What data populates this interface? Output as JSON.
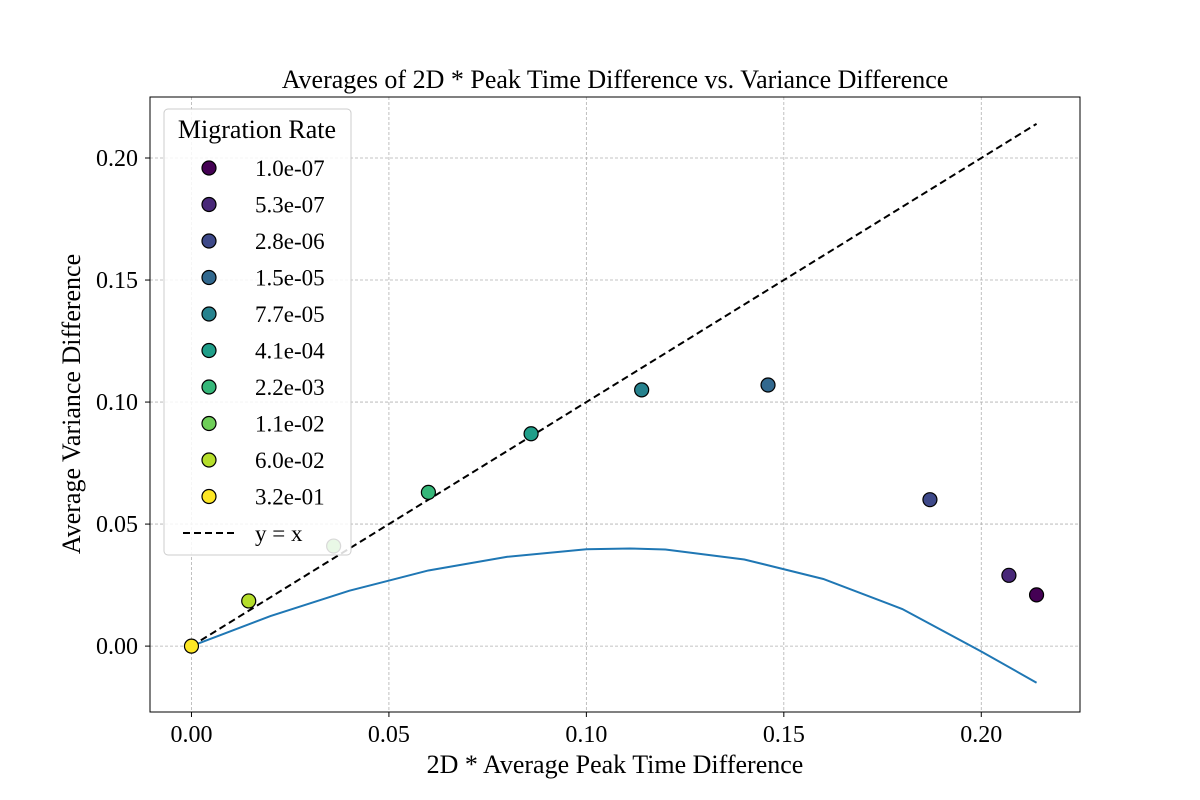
{
  "chart_data": {
    "type": "scatter",
    "title": "Averages of 2D * Peak Time Difference vs. Variance Difference",
    "xlabel": "2D * Average Peak Time Difference",
    "ylabel": "Average Variance Difference",
    "xlim": [
      -0.0105,
      0.225
    ],
    "ylim": [
      -0.027,
      0.225
    ],
    "xticks": [
      0.0,
      0.05,
      0.1,
      0.15,
      0.2
    ],
    "xtick_labels": [
      "0.00",
      "0.05",
      "0.10",
      "0.15",
      "0.20"
    ],
    "yticks": [
      0.0,
      0.05,
      0.1,
      0.15,
      0.2
    ],
    "ytick_labels": [
      "0.00",
      "0.05",
      "0.10",
      "0.15",
      "0.20"
    ],
    "grid": true,
    "legend": {
      "title": "Migration Rate",
      "placement": "top-left",
      "line_label": "y = x"
    },
    "points": [
      {
        "label": "1.0e-07",
        "x": 0.214,
        "y": 0.021,
        "color": "#440154"
      },
      {
        "label": "5.3e-07",
        "x": 0.207,
        "y": 0.029,
        "color": "#482878"
      },
      {
        "label": "2.8e-06",
        "x": 0.187,
        "y": 0.06,
        "color": "#3e4989"
      },
      {
        "label": "1.5e-05",
        "x": 0.146,
        "y": 0.107,
        "color": "#31688e"
      },
      {
        "label": "7.7e-05",
        "x": 0.114,
        "y": 0.105,
        "color": "#26828e"
      },
      {
        "label": "4.1e-04",
        "x": 0.086,
        "y": 0.087,
        "color": "#1f9e89"
      },
      {
        "label": "2.2e-03",
        "x": 0.06,
        "y": 0.063,
        "color": "#35b779"
      },
      {
        "label": "1.1e-02",
        "x": 0.036,
        "y": 0.041,
        "color": "#6ece58"
      },
      {
        "label": "6.0e-02",
        "x": 0.0145,
        "y": 0.0185,
        "color": "#b5de2b"
      },
      {
        "label": "3.2e-01",
        "x": 0.0,
        "y": 0.0,
        "color": "#fde725"
      }
    ],
    "reference_line": {
      "x": [
        0.0,
        0.214
      ],
      "y": [
        0.0,
        0.214
      ],
      "color": "#000000"
    },
    "curve": {
      "color": "#1f77b4",
      "x": [
        0.0,
        0.02,
        0.04,
        0.06,
        0.08,
        0.1,
        0.111,
        0.12,
        0.14,
        0.16,
        0.18,
        0.2,
        0.214
      ],
      "y": [
        0.0,
        0.0123,
        0.0227,
        0.031,
        0.0366,
        0.0397,
        0.04,
        0.0396,
        0.0355,
        0.0275,
        0.0152,
        -0.0022,
        -0.015
      ]
    }
  }
}
